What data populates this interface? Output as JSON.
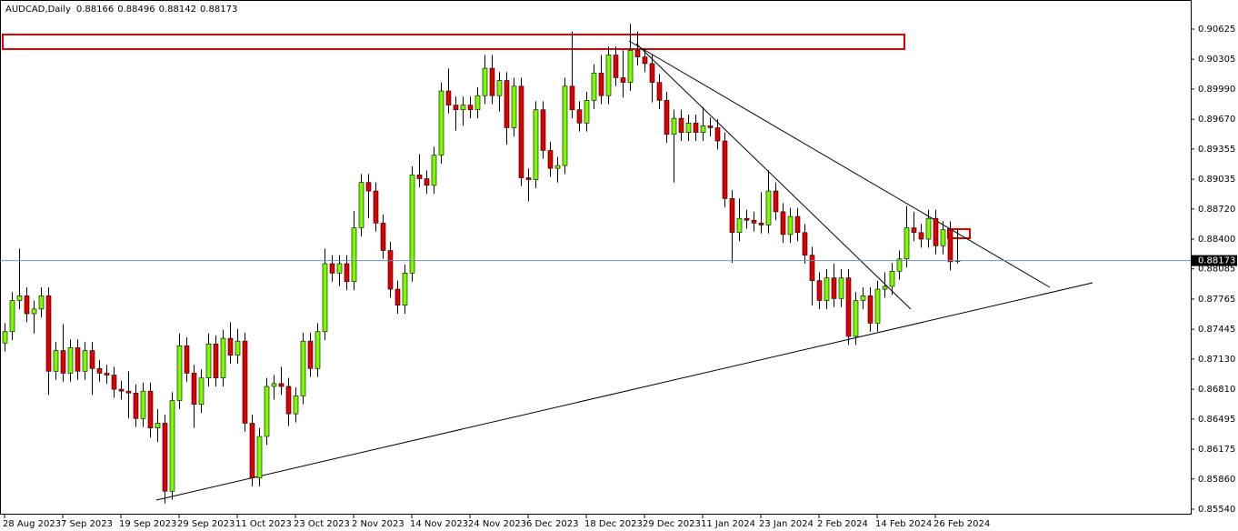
{
  "chart_data": {
    "type": "candlestick",
    "title": "AUDCAD,Daily",
    "up_color": "#7cfc00",
    "down_color": "#e00000",
    "categories": [
      "28 Aug 2023",
      null,
      null,
      null,
      null,
      null,
      null,
      null,
      "7 Sep 2023",
      null,
      null,
      null,
      null,
      null,
      null,
      null,
      "19 Sep 2023",
      null,
      null,
      null,
      null,
      null,
      null,
      null,
      "29 Sep 2023",
      null,
      null,
      null,
      null,
      null,
      null,
      null,
      "11 Oct 2023",
      null,
      null,
      null,
      null,
      null,
      null,
      null,
      "23 Oct 2023",
      null,
      null,
      null,
      null,
      null,
      null,
      null,
      "2 Nov 2023",
      null,
      null,
      null,
      null,
      null,
      null,
      null,
      "14 Nov 2023",
      null,
      null,
      null,
      null,
      null,
      null,
      null,
      "24 Nov 2023",
      null,
      null,
      null,
      null,
      null,
      null,
      null,
      "6 Dec 2023",
      null,
      null,
      null,
      null,
      null,
      null,
      null,
      "18 Dec 2023",
      null,
      null,
      null,
      null,
      null,
      null,
      null,
      "29 Dec 2023",
      null,
      null,
      null,
      null,
      null,
      null,
      null,
      "11 Jan 2024",
      null,
      null,
      null,
      null,
      null,
      null,
      null,
      "23 Jan 2024",
      null,
      null,
      null,
      null,
      null,
      null,
      null,
      "2 Feb 2024",
      null,
      null,
      null,
      null,
      null,
      null,
      null,
      "14 Feb 2024",
      null,
      null,
      null,
      null,
      null,
      null,
      null,
      "26 Feb 2024",
      null,
      null,
      null
    ],
    "open": [
      0.873,
      0.8742,
      0.8775,
      0.878,
      0.8761,
      0.8766,
      0.878,
      0.87,
      0.8722,
      0.8698,
      0.8725,
      0.87,
      0.8722,
      0.8703,
      0.8698,
      0.8696,
      0.8681,
      0.8679,
      0.8677,
      0.865,
      0.8679,
      0.864,
      0.8645,
      0.8573,
      0.8669,
      0.8727,
      0.8698,
      0.8665,
      0.8693,
      0.8729,
      0.8693,
      0.8735,
      0.8717,
      0.8732,
      0.8645,
      0.8587,
      0.8631,
      0.8684,
      0.8687,
      0.8684,
      0.8655,
      0.8674,
      0.8732,
      0.8703,
      0.8742,
      0.8814,
      0.8804,
      0.8814,
      0.8795,
      0.8852,
      0.89,
      0.8891,
      0.8857,
      0.8828,
      0.8787,
      0.877,
      0.8804,
      0.8908,
      0.8904,
      0.8897,
      0.8929,
      0.8997,
      0.8982,
      0.8977,
      0.8982,
      0.8977,
      0.8992,
      0.9021,
      0.8992,
      0.9008,
      0.8958,
      0.9002,
      0.8905,
      0.8903,
      0.8977,
      0.8934,
      0.8915,
      0.8918,
      0.9002,
      0.8977,
      0.8963,
      0.8987,
      0.9016,
      0.8992,
      0.9035,
      0.9011,
      0.9006,
      0.904,
      0.9033,
      0.9026,
      0.9006,
      0.8987,
      0.8951,
      0.8968,
      0.8953,
      0.8963,
      0.8953,
      0.896,
      0.8958,
      0.8944,
      0.8883,
      0.8847,
      0.8862,
      0.886,
      0.8857,
      0.8855,
      0.8891,
      0.8869,
      0.8845,
      0.8864,
      0.8847,
      0.8823,
      0.8796,
      0.8775,
      0.8799,
      0.8777,
      0.8799,
      0.8737,
      0.8775,
      0.878,
      0.8751,
      0.8787,
      0.879,
      0.8806,
      0.8819,
      0.8852,
      0.8847,
      0.884,
      0.8862,
      0.8833,
      0.885,
      0.88166
    ],
    "high": [
      0.8751,
      0.8784,
      0.883,
      0.8789,
      0.8775,
      0.8789,
      0.8789,
      0.8731,
      0.875,
      0.8734,
      0.8734,
      0.8731,
      0.8731,
      0.8712,
      0.8707,
      0.8705,
      0.869,
      0.87,
      0.8686,
      0.8688,
      0.8688,
      0.866,
      0.8654,
      0.8678,
      0.874,
      0.8736,
      0.8707,
      0.8702,
      0.874,
      0.8738,
      0.8744,
      0.8752,
      0.8745,
      0.8741,
      0.8654,
      0.864,
      0.8693,
      0.8696,
      0.8705,
      0.8693,
      0.8683,
      0.8741,
      0.8741,
      0.8751,
      0.883,
      0.8823,
      0.8823,
      0.8823,
      0.887,
      0.8909,
      0.8909,
      0.89,
      0.8866,
      0.8837,
      0.8796,
      0.8813,
      0.8917,
      0.893,
      0.8913,
      0.8938,
      0.9006,
      0.9021,
      0.8991,
      0.8991,
      0.8991,
      0.9001,
      0.9035,
      0.9035,
      0.9017,
      0.9017,
      0.9011,
      0.9011,
      0.8915,
      0.8986,
      0.8986,
      0.8943,
      0.8927,
      0.9011,
      0.906,
      0.8986,
      0.8996,
      0.9025,
      0.9035,
      0.9044,
      0.9044,
      0.904,
      0.9068,
      0.906,
      0.9042,
      0.9035,
      0.9015,
      0.8996,
      0.8977,
      0.8977,
      0.8972,
      0.8972,
      0.898,
      0.8969,
      0.8967,
      0.8953,
      0.8892,
      0.8883,
      0.8871,
      0.8869,
      0.889,
      0.8913,
      0.89,
      0.8878,
      0.8873,
      0.8873,
      0.8856,
      0.8832,
      0.8805,
      0.8808,
      0.8814,
      0.8808,
      0.8808,
      0.8784,
      0.8789,
      0.8789,
      0.8796,
      0.8805,
      0.8815,
      0.8828,
      0.8875,
      0.8869,
      0.8856,
      0.8871,
      0.8871,
      0.8859,
      0.8859,
      0.88496
    ],
    "low": [
      0.8721,
      0.8733,
      0.8766,
      0.8752,
      0.874,
      0.8757,
      0.8675,
      0.8691,
      0.8689,
      0.8689,
      0.8691,
      0.8691,
      0.8675,
      0.8689,
      0.8687,
      0.8672,
      0.867,
      0.865,
      0.8641,
      0.8641,
      0.863,
      0.8625,
      0.856,
      0.8564,
      0.866,
      0.8689,
      0.864,
      0.8656,
      0.8684,
      0.8684,
      0.8684,
      0.8708,
      0.8708,
      0.8636,
      0.8578,
      0.8578,
      0.8622,
      0.867,
      0.8675,
      0.8642,
      0.8646,
      0.8665,
      0.8694,
      0.8694,
      0.8733,
      0.8795,
      0.879,
      0.8786,
      0.8786,
      0.8843,
      0.8862,
      0.8848,
      0.8819,
      0.8778,
      0.8761,
      0.8761,
      0.8795,
      0.8895,
      0.8888,
      0.8888,
      0.892,
      0.8973,
      0.8955,
      0.896,
      0.8968,
      0.8968,
      0.8983,
      0.8983,
      0.8975,
      0.894,
      0.8949,
      0.8896,
      0.888,
      0.8894,
      0.8925,
      0.8906,
      0.89,
      0.8909,
      0.8968,
      0.8954,
      0.8954,
      0.8978,
      0.8983,
      0.8983,
      0.9002,
      0.899,
      0.8997,
      0.9024,
      0.9017,
      0.8985,
      0.8978,
      0.8942,
      0.89,
      0.8944,
      0.8944,
      0.8944,
      0.8944,
      0.8949,
      0.8935,
      0.8874,
      0.8815,
      0.8838,
      0.8851,
      0.8848,
      0.8846,
      0.8846,
      0.886,
      0.8836,
      0.8836,
      0.8838,
      0.8814,
      0.877,
      0.8766,
      0.8766,
      0.8768,
      0.8768,
      0.8728,
      0.8728,
      0.8766,
      0.8742,
      0.8742,
      0.8778,
      0.8781,
      0.8797,
      0.881,
      0.8838,
      0.8831,
      0.8831,
      0.8824,
      0.8824,
      0.8807,
      0.88142
    ],
    "close": [
      0.8742,
      0.8775,
      0.878,
      0.8761,
      0.8766,
      0.878,
      0.87,
      0.8722,
      0.8698,
      0.8725,
      0.87,
      0.8722,
      0.8703,
      0.8698,
      0.8696,
      0.8681,
      0.8679,
      0.8677,
      0.865,
      0.8679,
      0.864,
      0.8645,
      0.8573,
      0.8669,
      0.8727,
      0.8698,
      0.8665,
      0.8693,
      0.8729,
      0.8693,
      0.8735,
      0.8717,
      0.8732,
      0.8645,
      0.8587,
      0.8631,
      0.8684,
      0.8687,
      0.8684,
      0.8655,
      0.8674,
      0.8732,
      0.8703,
      0.8742,
      0.8814,
      0.8804,
      0.8814,
      0.8795,
      0.8852,
      0.89,
      0.8891,
      0.8857,
      0.8828,
      0.8787,
      0.877,
      0.8804,
      0.8908,
      0.8904,
      0.8897,
      0.8929,
      0.8997,
      0.8982,
      0.8977,
      0.8982,
      0.8977,
      0.8992,
      0.9021,
      0.8992,
      0.9008,
      0.8958,
      0.9002,
      0.8905,
      0.8903,
      0.8977,
      0.8934,
      0.8915,
      0.8918,
      0.9002,
      0.8977,
      0.8963,
      0.8987,
      0.9016,
      0.8992,
      0.9035,
      0.9011,
      0.9006,
      0.904,
      0.9033,
      0.9026,
      0.9006,
      0.8987,
      0.8951,
      0.8968,
      0.8953,
      0.8963,
      0.8953,
      0.896,
      0.8958,
      0.8944,
      0.8883,
      0.8847,
      0.8862,
      0.886,
      0.8857,
      0.8855,
      0.8891,
      0.8869,
      0.8845,
      0.8864,
      0.8847,
      0.8823,
      0.8796,
      0.8775,
      0.8799,
      0.8777,
      0.8799,
      0.8737,
      0.8775,
      0.878,
      0.8751,
      0.8787,
      0.879,
      0.8806,
      0.8819,
      0.8852,
      0.8847,
      0.884,
      0.8862,
      0.8833,
      0.885,
      0.8816,
      0.88173
    ],
    "ylim": [
      0.85482,
      0.90933
    ],
    "yticks": [
      0.90625,
      0.90305,
      {
        "value": 0.8999,
        "label": "0.89990"
      },
      {
        "value": 0.8967,
        "label": "0.89670"
      },
      0.89355,
      0.89035,
      {
        "value": 0.8872,
        "label": "0.88720"
      },
      {
        "value": 0.884,
        "label": "0.88400"
      },
      0.88085,
      0.87765,
      0.87445,
      {
        "value": 0.8713,
        "label": "0.87130"
      },
      {
        "value": 0.8681,
        "label": "0.86810"
      },
      0.86495,
      0.86175,
      {
        "value": 0.8586,
        "label": "0.85860"
      },
      {
        "value": 0.8554,
        "label": "0.85540"
      }
    ]
  }
}
